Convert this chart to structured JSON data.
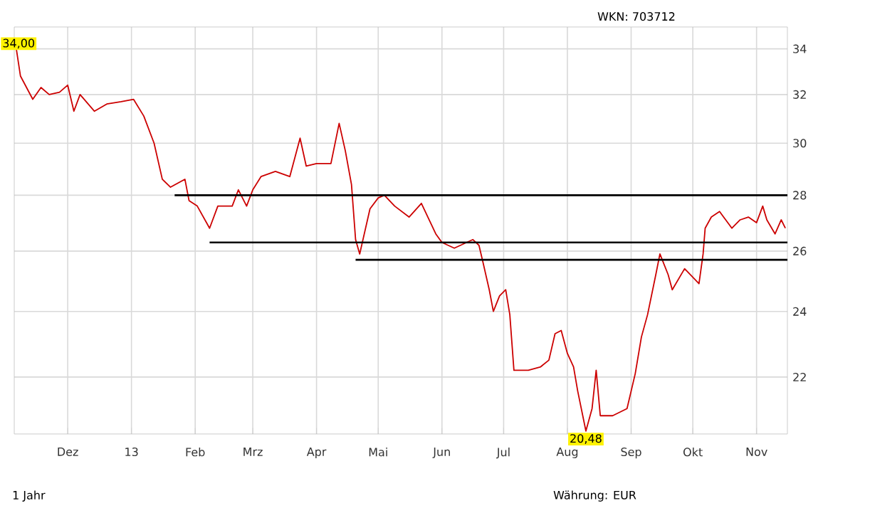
{
  "chart_data": {
    "type": "line",
    "subtitle": "WKN: 703712",
    "annotations": [
      {
        "text": "34,00",
        "x": "2012-11-06",
        "y": 34.0
      },
      {
        "text": "20,48",
        "x": "2013-08-10",
        "y": 20.48
      },
      "1 Jahr",
      "Währung: EUR"
    ],
    "x": [
      "2012-11-06",
      "2012-11-08",
      "2012-11-14",
      "2012-11-18",
      "2012-11-22",
      "2012-11-27",
      "2012-12-01",
      "2012-12-04",
      "2012-12-07",
      "2012-12-14",
      "2012-12-20",
      "2012-12-27",
      "2013-01-02",
      "2013-01-07",
      "2013-01-12",
      "2013-01-16",
      "2013-01-20",
      "2013-01-27",
      "2013-01-29",
      "2013-02-02",
      "2013-02-08",
      "2013-02-12",
      "2013-02-19",
      "2013-02-22",
      "2013-02-26",
      "2013-03-01",
      "2013-03-05",
      "2013-03-12",
      "2013-03-19",
      "2013-03-24",
      "2013-03-27",
      "2013-04-01",
      "2013-04-08",
      "2013-04-12",
      "2013-04-15",
      "2013-04-18",
      "2013-04-20",
      "2013-04-22",
      "2013-04-27",
      "2013-05-01",
      "2013-05-04",
      "2013-05-09",
      "2013-05-16",
      "2013-05-22",
      "2013-05-29",
      "2013-06-01",
      "2013-06-07",
      "2013-06-16",
      "2013-06-19",
      "2013-06-21",
      "2013-06-24",
      "2013-06-26",
      "2013-06-29",
      "2013-07-02",
      "2013-07-04",
      "2013-07-06",
      "2013-07-13",
      "2013-07-19",
      "2013-07-23",
      "2013-07-26",
      "2013-07-29",
      "2013-08-01",
      "2013-08-04",
      "2013-08-06",
      "2013-08-10",
      "2013-08-13",
      "2013-08-15",
      "2013-08-17",
      "2013-08-23",
      "2013-08-30",
      "2013-09-03",
      "2013-09-06",
      "2013-09-09",
      "2013-09-13",
      "2013-09-15",
      "2013-09-19",
      "2013-09-21",
      "2013-09-27",
      "2013-10-04",
      "2013-10-06",
      "2013-10-07",
      "2013-10-10",
      "2013-10-14",
      "2013-10-17",
      "2013-10-20",
      "2013-10-24",
      "2013-10-28",
      "2013-11-01",
      "2013-11-04",
      "2013-11-06",
      "2013-11-10",
      "2013-11-13",
      "2013-11-15"
    ],
    "series": [
      {
        "color": "#cc0000",
        "values": [
          34.0,
          32.8,
          31.8,
          32.3,
          32.0,
          32.1,
          32.4,
          31.3,
          32.0,
          31.3,
          31.6,
          31.7,
          31.8,
          31.1,
          30.0,
          28.6,
          28.3,
          28.6,
          27.8,
          27.6,
          26.8,
          27.6,
          27.6,
          28.2,
          27.6,
          28.2,
          28.7,
          28.9,
          28.7,
          30.2,
          29.1,
          29.2,
          29.2,
          30.8,
          29.7,
          28.4,
          26.4,
          25.9,
          27.5,
          27.9,
          28.0,
          27.6,
          27.2,
          27.7,
          26.6,
          26.3,
          26.1,
          26.4,
          26.2,
          25.6,
          24.7,
          24.0,
          24.5,
          24.7,
          23.9,
          22.2,
          22.2,
          22.3,
          22.5,
          23.3,
          23.4,
          22.7,
          22.3,
          21.6,
          20.48,
          21.1,
          22.2,
          20.9,
          20.9,
          21.1,
          22.1,
          23.2,
          23.9,
          25.2,
          25.9,
          25.2,
          24.7,
          25.4,
          24.9,
          25.9,
          26.8,
          27.2,
          27.4,
          27.1,
          26.8,
          27.1,
          27.2,
          27.0,
          27.6,
          27.1,
          26.6,
          27.1,
          26.8
        ]
      },
      {
        "type": "line",
        "color": "#000000",
        "x": [
          "2013-01-22",
          "2013-11-16"
        ],
        "values": [
          28.0,
          28.0
        ]
      },
      {
        "type": "line",
        "color": "#000000",
        "x": [
          "2013-02-08",
          "2013-11-16"
        ],
        "values": [
          26.3,
          26.3
        ]
      },
      {
        "type": "line",
        "color": "#000000",
        "x": [
          "2013-04-20",
          "2013-11-16"
        ],
        "values": [
          25.7,
          25.7
        ]
      }
    ],
    "log": true,
    "grid": true,
    "marker": "none",
    "line_style": "solid",
    "xlim": [
      "2012-11-05",
      "2013-11-16"
    ],
    "ylim": [
      20.4,
      35
    ],
    "xticks": [
      {
        "value": "2012-12-01",
        "label": "Dez"
      },
      {
        "value": "2013-01-01",
        "label": "13"
      },
      {
        "value": "2013-02-01",
        "label": "Feb"
      },
      {
        "value": "2013-03-01",
        "label": "Mrz"
      },
      {
        "value": "2013-04-01",
        "label": "Apr"
      },
      {
        "value": "2013-05-01",
        "label": "Mai"
      },
      {
        "value": "2013-06-01",
        "label": "Jun"
      },
      {
        "value": "2013-07-01",
        "label": "Jul"
      },
      {
        "value": "2013-08-01",
        "label": "Aug"
      },
      {
        "value": "2013-09-01",
        "label": "Sep"
      },
      {
        "value": "2013-10-01",
        "label": "Okt"
      },
      {
        "value": "2013-11-01",
        "label": "Nov"
      }
    ],
    "yticks": [
      22,
      24,
      26,
      28,
      30,
      32,
      34
    ]
  }
}
